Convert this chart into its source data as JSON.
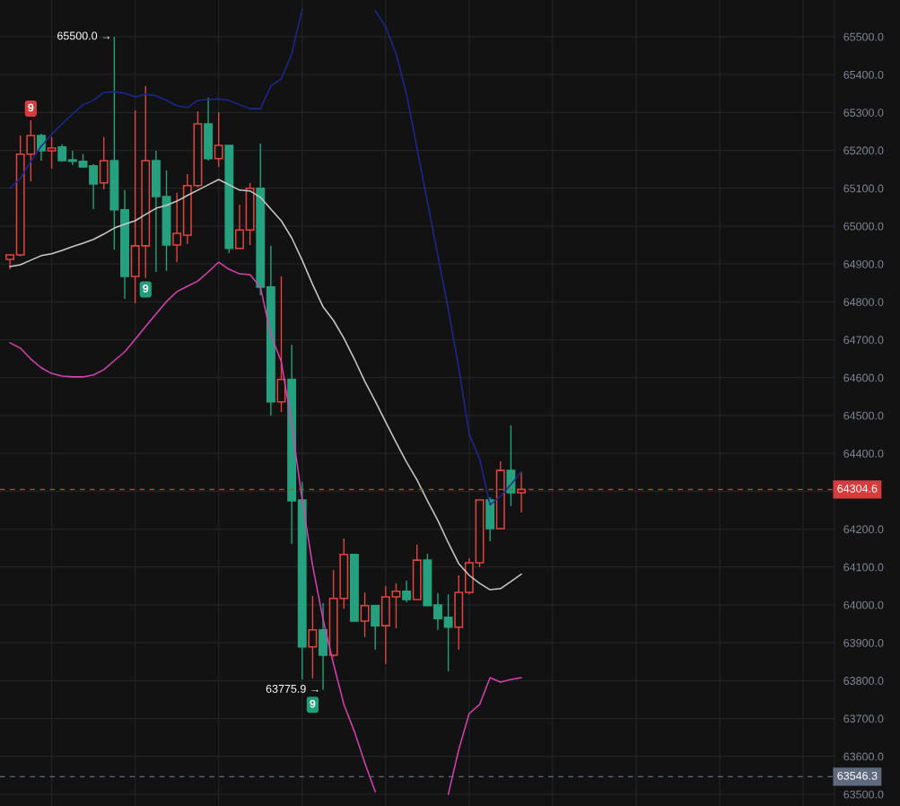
{
  "chart_data": {
    "type": "candlestick",
    "categories": [
      null,
      null,
      null,
      null,
      null,
      null,
      null,
      null,
      null,
      null,
      null,
      null,
      null,
      null,
      null,
      null,
      null,
      null,
      null,
      null,
      null,
      null,
      null,
      null,
      null,
      null,
      null,
      null,
      null,
      null,
      null,
      null,
      null,
      null,
      null,
      null,
      null,
      null,
      null,
      null,
      null,
      null,
      null,
      null,
      null,
      null,
      null,
      null,
      null,
      null
    ],
    "ohlc": [
      [
        64912,
        64926,
        64886,
        64924
      ],
      [
        64924,
        65239,
        64920,
        65190
      ],
      [
        65190,
        65280,
        65118,
        65239
      ],
      [
        65239,
        65244,
        65173,
        65199
      ],
      [
        65199,
        65235,
        65152,
        65206
      ],
      [
        65209,
        65216,
        65171,
        65173
      ],
      [
        65175,
        65199,
        65161,
        65171
      ],
      [
        65171,
        65190,
        65154,
        65156
      ],
      [
        65159,
        65164,
        65045,
        65111
      ],
      [
        65114,
        65235,
        65097,
        65173
      ],
      [
        65173,
        65500,
        64938,
        65043
      ],
      [
        65043,
        65095,
        64808,
        64867
      ],
      [
        64867,
        65306,
        64796,
        64948
      ],
      [
        64948,
        65370,
        64863,
        65173
      ],
      [
        65173,
        65199,
        64879,
        65078
      ],
      [
        65078,
        65147,
        64882,
        64950
      ],
      [
        64950,
        65088,
        64905,
        64981
      ],
      [
        64976,
        65137,
        64953,
        65107
      ],
      [
        65107,
        65303,
        65102,
        65270
      ],
      [
        65270,
        65339,
        65173,
        65178
      ],
      [
        65178,
        65301,
        65156,
        65213
      ],
      [
        65213,
        65213,
        64929,
        64941
      ],
      [
        64941,
        65057,
        64941,
        64990
      ],
      [
        64990,
        65114,
        64950,
        65100
      ],
      [
        65100,
        65218,
        64818,
        64839
      ],
      [
        64839,
        64948,
        64500,
        64536
      ],
      [
        64536,
        64867,
        64509,
        64595
      ],
      [
        64595,
        64687,
        64161,
        64275
      ],
      [
        64277,
        64325,
        63803,
        63889
      ],
      [
        63889,
        64024,
        63806,
        63934
      ],
      [
        63934,
        64005,
        63775.9,
        63867
      ],
      [
        63867,
        64092,
        63863,
        64017
      ],
      [
        64017,
        64175,
        63990,
        64133
      ],
      [
        64133,
        64133,
        63955,
        63957
      ],
      [
        63957,
        64033,
        63915,
        63998
      ],
      [
        63998,
        63998,
        63882,
        63945
      ],
      [
        63945,
        64050,
        63844,
        64021
      ],
      [
        64021,
        64057,
        63938,
        64036
      ],
      [
        64036,
        64064,
        64007,
        64014
      ],
      [
        64014,
        64159,
        64014,
        64118
      ],
      [
        64118,
        64135,
        63998,
        63998
      ],
      [
        64000,
        64031,
        63934,
        63964
      ],
      [
        63967,
        64028,
        63825,
        63941
      ],
      [
        63941,
        64078,
        63882,
        64033
      ],
      [
        64033,
        64123,
        64028,
        64111
      ],
      [
        64111,
        64277,
        64100,
        64277
      ],
      [
        64277,
        64284,
        64168,
        64201
      ],
      [
        64201,
        64379,
        64201,
        64355
      ],
      [
        64355,
        64474,
        64261,
        64296
      ],
      [
        64296,
        64351,
        64244,
        64304.6
      ]
    ],
    "colors": [
      "#e2443f",
      "#e2443f",
      "#e2443f",
      "#26a17f",
      "#e2443f",
      "#26a17f",
      "#26a17f",
      "#26a17f",
      "#26a17f",
      "#e2443f",
      "#26a17f",
      "#26a17f",
      "#e2443f",
      "#e2443f",
      "#26a17f",
      "#26a17f",
      "#e2443f",
      "#e2443f",
      "#e2443f",
      "#26a17f",
      "#e2443f",
      "#26a17f",
      "#e2443f",
      "#e2443f",
      "#26a17f",
      "#26a17f",
      "#e2443f",
      "#26a17f",
      "#26a17f",
      "#e2443f",
      "#26a17f",
      "#e2443f",
      "#e2443f",
      "#26a17f",
      "#e2443f",
      "#26a17f",
      "#e2443f",
      "#e2443f",
      "#26a17f",
      "#e2443f",
      "#26a17f",
      "#26a17f",
      "#26a17f",
      "#e2443f",
      "#e2443f",
      "#e2443f",
      "#26a17f",
      "#e2443f",
      "#26a17f",
      "#e2443f"
    ],
    "series": [
      {
        "type": "line",
        "color": "#1c2891",
        "values": [
          65100,
          65126,
          65171,
          65211,
          65242,
          65270,
          65296,
          65320,
          65332,
          65353,
          65355,
          65351,
          65341,
          65348,
          65344,
          65332,
          65318,
          65313,
          65332,
          65334,
          65336,
          65332,
          65320,
          65310,
          65310,
          65370,
          65389,
          65455,
          65573,
          null,
          null,
          null,
          null,
          null,
          null,
          65569,
          65526,
          65455,
          65348,
          65206,
          65064,
          64922,
          64780,
          64626,
          64451,
          64385,
          64264,
          64287,
          64318,
          64351
        ]
      },
      {
        "type": "line",
        "color": "#c9c9c9",
        "values": [
          64893,
          64898,
          64910,
          64922,
          64927,
          64936,
          64946,
          64955,
          64965,
          64979,
          64995,
          65005,
          65014,
          65031,
          65047,
          65055,
          65066,
          65081,
          65095,
          65109,
          65123,
          65109,
          65095,
          65093,
          65076,
          65045,
          65014,
          64969,
          64910,
          64846,
          64787,
          64751,
          64704,
          64649,
          64590,
          64538,
          64483,
          64429,
          64377,
          64330,
          64275,
          64223,
          64164,
          64109,
          64078,
          64057,
          64040,
          64043,
          64062,
          64081
        ]
      },
      {
        "type": "line",
        "color": "#d93fb2",
        "values": [
          64692,
          64678,
          64649,
          64626,
          64611,
          64604,
          64602,
          64602,
          64607,
          64621,
          64645,
          64668,
          64701,
          64735,
          64768,
          64801,
          64827,
          64841,
          64855,
          64879,
          64905,
          64886,
          64874,
          64872,
          64839,
          64713,
          64642,
          64476,
          64277,
          64104,
          63962,
          63844,
          63737,
          63666,
          63583,
          63507,
          null,
          null,
          null,
          null,
          null,
          null,
          63500,
          63618,
          63713,
          63737,
          63808,
          63796,
          63803,
          63808
        ]
      }
    ],
    "ylim": [
      63469,
      65597
    ],
    "yticks": [
      {
        "value": 63500,
        "label": "63500.0"
      },
      {
        "value": 63600,
        "label": "63600.0"
      },
      {
        "value": 63700,
        "label": "63700.0"
      },
      {
        "value": 63800,
        "label": "63800.0"
      },
      {
        "value": 63900,
        "label": "63900.0"
      },
      {
        "value": 64000,
        "label": "64000.0"
      },
      {
        "value": 64100,
        "label": "64100.0"
      },
      {
        "value": 64200,
        "label": "64200.0"
      },
      {
        "value": 64300,
        "label": null
      },
      {
        "value": 64400,
        "label": "64400.0"
      },
      {
        "value": 64500,
        "label": "64500.0"
      },
      {
        "value": 64600,
        "label": "64600.0"
      },
      {
        "value": 64700,
        "label": "64700.0"
      },
      {
        "value": 64800,
        "label": "64800.0"
      },
      {
        "value": 64900,
        "label": "64900.0"
      },
      {
        "value": 65000,
        "label": "65000.0"
      },
      {
        "value": 65100,
        "label": "65100.0"
      },
      {
        "value": 65200,
        "label": "65200.0"
      },
      {
        "value": 65300,
        "label": "65300.0"
      },
      {
        "value": 65400,
        "label": "65400.0"
      },
      {
        "value": 65500,
        "label": "65500.0"
      }
    ],
    "ref_lines": [
      {
        "axis": "y",
        "value": 64304.6,
        "label": "64304.6",
        "color": "#d63c3c",
        "line_style": "dashed"
      },
      {
        "axis": "y",
        "value": 63546.3,
        "label": "63546.3",
        "color": "#5f6a7e",
        "line_style": "dashed"
      }
    ],
    "annotations": [
      "65500.0 →",
      "63775.9 →",
      {
        "text": "9",
        "y": 65280
      },
      {
        "text": "9",
        "y": 64863
      },
      {
        "text": "9",
        "y": 63806
      }
    ],
    "grid": true,
    "tick_labels": "y"
  }
}
